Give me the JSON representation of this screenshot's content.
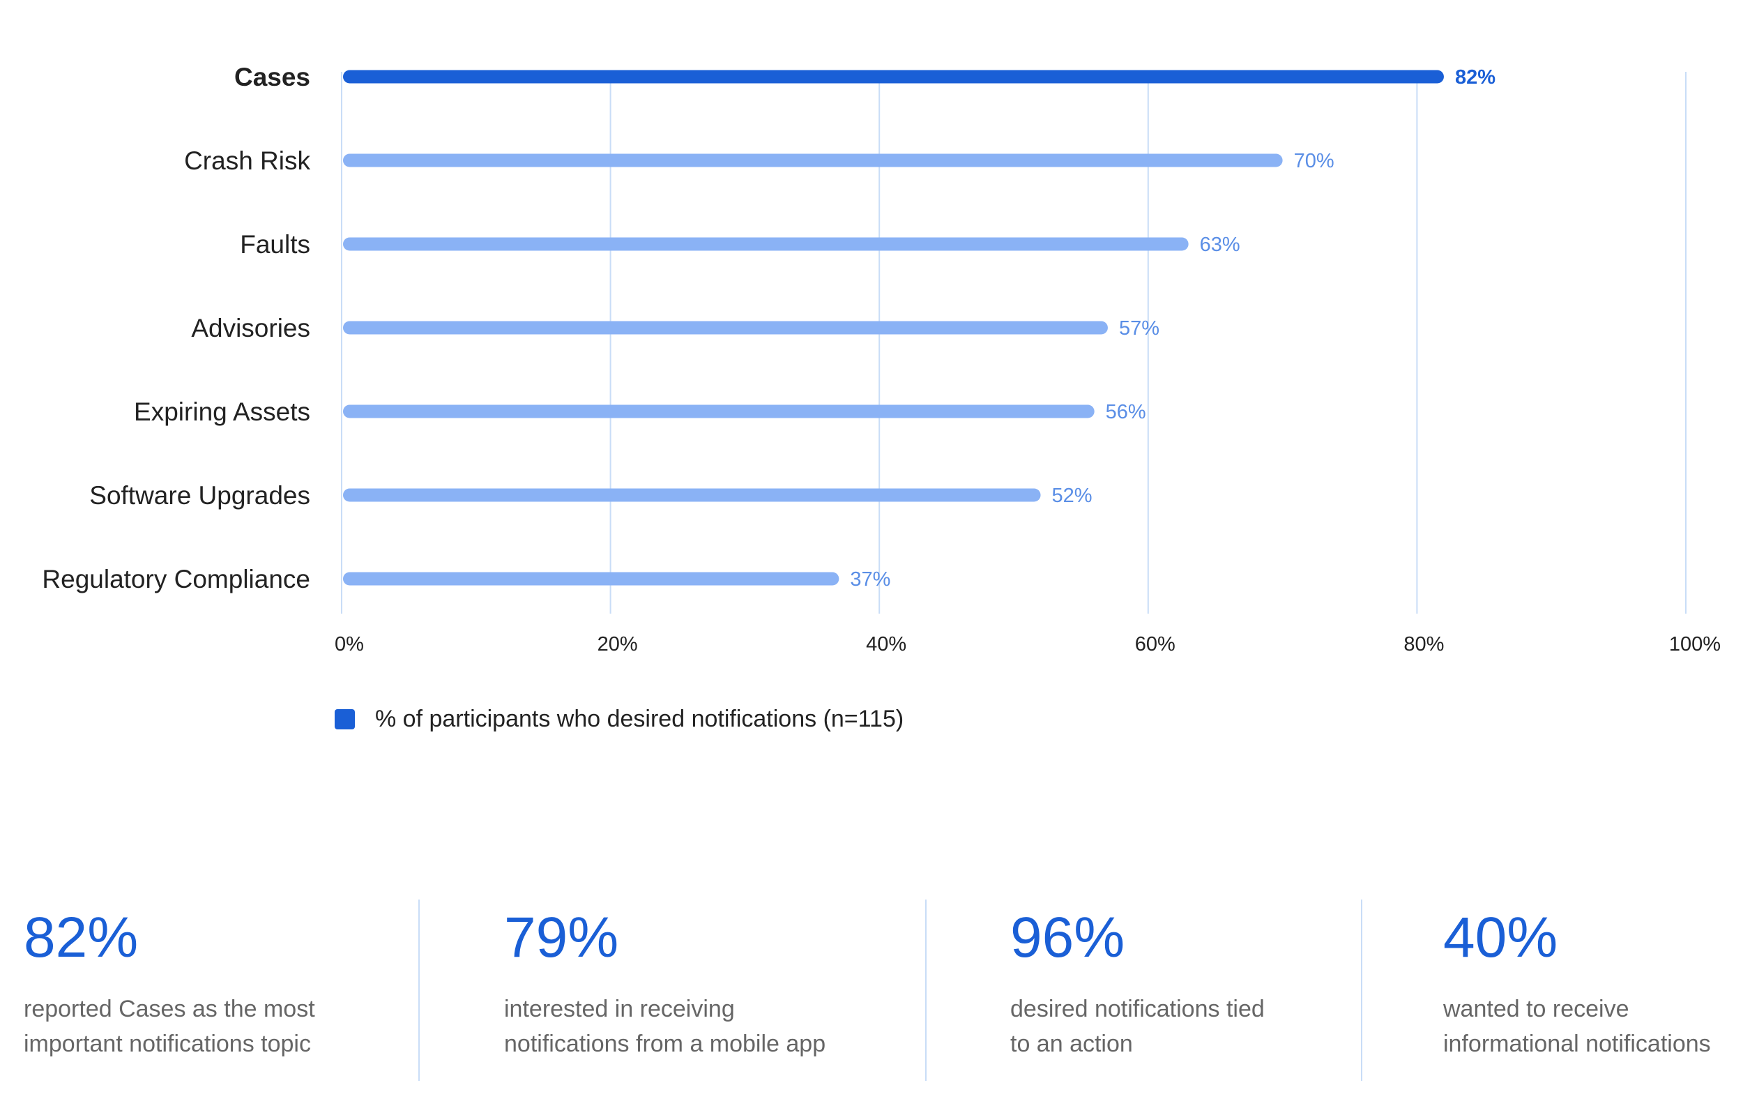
{
  "chart_data": {
    "type": "bar",
    "orientation": "horizontal",
    "categories": [
      "Cases",
      "Crash Risk",
      "Faults",
      "Advisories",
      "Expiring Assets",
      "Software Upgrades",
      "Regulatory Compliance"
    ],
    "series": [
      {
        "name": "% of participants who desired notifications (n=115)",
        "values": [
          82,
          70,
          63,
          57,
          56,
          52,
          37
        ],
        "value_labels": [
          "82%",
          "70%",
          "63%",
          "57%",
          "56%",
          "52%",
          "37%"
        ]
      }
    ],
    "highlight_category": "Cases",
    "xlim": [
      0,
      100
    ],
    "x_ticks": [
      "0%",
      "20%",
      "40%",
      "60%",
      "80%",
      "100%"
    ],
    "grid": true,
    "legend_position": "bottom-left",
    "colors": {
      "highlight": "#1a5fd6",
      "bar": "#8ab2f5",
      "grid": "#c9ddf7",
      "value_label": "#5a8ee6"
    }
  },
  "legend": {
    "label": "% of participants who desired notifications (n=115)"
  },
  "stats": [
    {
      "value": "82%",
      "line1": "reported Cases as the most",
      "line2": "important notifications topic"
    },
    {
      "value": "79%",
      "line1": "interested in receiving",
      "line2": "notifications from a mobile app"
    },
    {
      "value": "96%",
      "line1": "desired notifications tied",
      "line2": "to an action"
    },
    {
      "value": "40%",
      "line1": "wanted to receive",
      "line2": "informational notifications"
    }
  ]
}
